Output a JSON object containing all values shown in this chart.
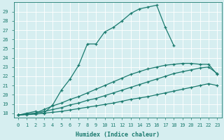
{
  "xlabel": "Humidex (Indice chaleur)",
  "bg_color": "#d6eef0",
  "line_color": "#1a7a6e",
  "grid_color": "#ffffff",
  "xlim": [
    -0.5,
    23.5
  ],
  "ylim": [
    17.5,
    30.0
  ],
  "yticks": [
    18,
    19,
    20,
    21,
    22,
    23,
    24,
    25,
    26,
    27,
    28,
    29
  ],
  "xticks": [
    0,
    1,
    2,
    3,
    4,
    5,
    6,
    7,
    8,
    9,
    10,
    11,
    12,
    13,
    14,
    15,
    16,
    17,
    18,
    19,
    20,
    21,
    22,
    23
  ],
  "line1_x": [
    0,
    1,
    2,
    3,
    4,
    5,
    6,
    7,
    8,
    9,
    10,
    11,
    12,
    13,
    14,
    15,
    16,
    17,
    18
  ],
  "line1_y": [
    17.8,
    18.0,
    18.2,
    18.0,
    18.9,
    20.5,
    21.7,
    23.2,
    25.5,
    25.5,
    26.8,
    27.3,
    28.0,
    28.8,
    29.3,
    29.5,
    29.7,
    27.3,
    25.3
  ],
  "line2_x": [
    0,
    2,
    3,
    4,
    5,
    6,
    7,
    8,
    9,
    10,
    11,
    12,
    13,
    14,
    15,
    16,
    17,
    18,
    19,
    20,
    21,
    22,
    23
  ],
  "line2_y": [
    17.8,
    18.0,
    18.4,
    18.8,
    19.1,
    19.5,
    19.8,
    20.2,
    20.6,
    21.0,
    21.4,
    21.8,
    22.2,
    22.5,
    22.8,
    23.0,
    23.2,
    23.3,
    23.4,
    23.4,
    23.3,
    23.3,
    22.2
  ],
  "line3_x": [
    0,
    1,
    2,
    3,
    4,
    5,
    6,
    7,
    8,
    9,
    10,
    11,
    12,
    13,
    14,
    15,
    16,
    17,
    18,
    19,
    20,
    21,
    22,
    23
  ],
  "line3_y": [
    17.8,
    17.9,
    18.0,
    18.2,
    18.4,
    18.6,
    18.9,
    19.1,
    19.4,
    19.6,
    19.9,
    20.2,
    20.5,
    20.8,
    21.1,
    21.4,
    21.7,
    22.0,
    22.3,
    22.5,
    22.7,
    22.9,
    23.0,
    22.3
  ],
  "line4_x": [
    0,
    1,
    2,
    3,
    4,
    5,
    6,
    7,
    8,
    9,
    10,
    11,
    12,
    13,
    14,
    15,
    16,
    17,
    18,
    19,
    20,
    21,
    22,
    23
  ],
  "line4_y": [
    17.8,
    17.85,
    17.9,
    18.0,
    18.1,
    18.2,
    18.35,
    18.5,
    18.65,
    18.8,
    18.95,
    19.1,
    19.3,
    19.5,
    19.65,
    19.8,
    20.0,
    20.2,
    20.4,
    20.6,
    20.8,
    21.0,
    21.2,
    21.0
  ],
  "marker": "+",
  "markersize": 3,
  "linewidth": 0.9
}
